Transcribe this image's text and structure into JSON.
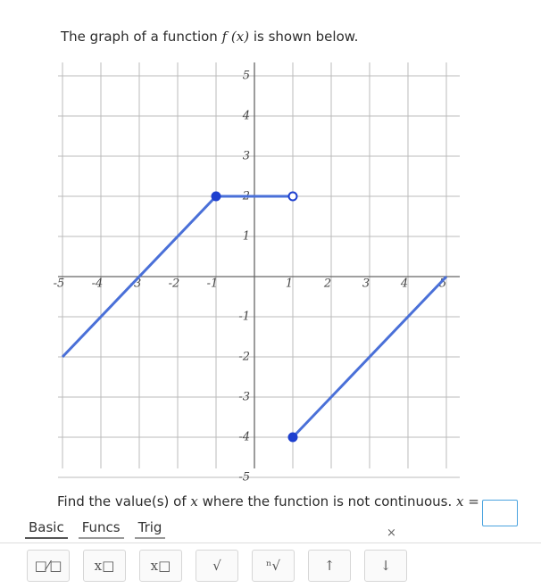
{
  "question": {
    "prefix": "The graph of a function",
    "math": "f (x)",
    "suffix": "is shown below."
  },
  "chart_data": {
    "type": "line",
    "x": [
      -5,
      -1,
      1,
      1,
      1,
      5
    ],
    "series": [
      {
        "color": "#4a70d8",
        "values": [
          -2,
          2,
          2,
          null,
          -4,
          0
        ]
      }
    ],
    "points": [
      {
        "x": -1,
        "y": 2,
        "filled": true
      },
      {
        "x": 1,
        "y": 2,
        "filled": false
      },
      {
        "x": 1,
        "y": -4,
        "filled": true
      }
    ],
    "xlim": [
      -5,
      5
    ],
    "ylim": [
      -5,
      5
    ],
    "xticks": [
      -5,
      -4,
      -3,
      -2,
      -1,
      1,
      2,
      3,
      4,
      5
    ],
    "yticks": [
      -5,
      -4,
      -3,
      -2,
      -1,
      1,
      2,
      3,
      4,
      5
    ],
    "grid": true
  },
  "prompt": {
    "text": "Find the value(s) of",
    "math": "x",
    "rest": "where the function is not continuous.",
    "answer_label": "x ="
  },
  "toolbar": {
    "tabs": [
      "Basic",
      "Funcs",
      "Trig"
    ],
    "close": "×",
    "buttons": [
      "□⁄□",
      "x□",
      "x□",
      "√",
      "ⁿ√",
      "↑",
      "↓"
    ]
  }
}
